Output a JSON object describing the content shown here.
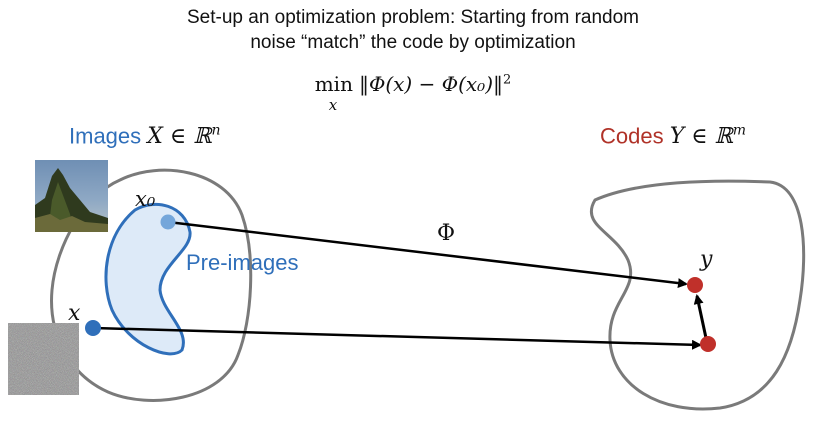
{
  "title": {
    "line1": "Set-up an optimization problem: Starting from random",
    "line2": "noise “match” the code by optimization"
  },
  "formula": {
    "operator": "min",
    "subscript": "x",
    "body": "‖Φ(x) − Φ(x₀)‖",
    "exponent": "2"
  },
  "images_set": {
    "word": "Images",
    "symbol": "X ∈ ℝ",
    "exponent": "n",
    "word_color": "#2f6fba"
  },
  "codes_set": {
    "word": "Codes",
    "symbol": "Y ∈ ℝ",
    "exponent": "m",
    "word_color": "#b03228"
  },
  "preimages_label": "Pre-images",
  "map_label": "Φ",
  "points": {
    "x0": "x₀",
    "x": "x",
    "y": "y"
  },
  "colors": {
    "outline": "#7a7a7a",
    "preimage_fill": "#ddeaf8",
    "preimage_stroke": "#2f6fba",
    "x0_point": "#74a6da",
    "x_point": "#2f6fba",
    "code_point": "#c0302a",
    "arrow": "#000000"
  }
}
